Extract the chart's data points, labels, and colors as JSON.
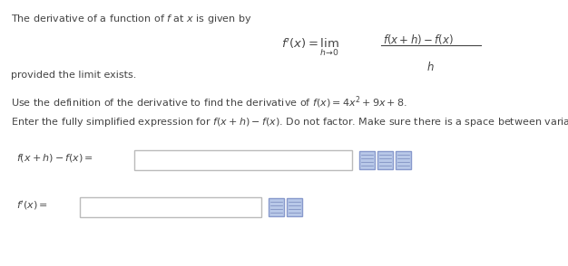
{
  "bg_color": "#ffffff",
  "text_color": "#444444",
  "line1": "The derivative of a function of $f$ at $x$ is given by",
  "formula_left": "$f'(x) = \\displaystyle\\lim_{h \\to 0}$",
  "formula_frac_num": "$f(x+h)-f(x)$",
  "formula_frac_den": "$h$",
  "line2": "provided the limit exists.",
  "line3": "Use the definition of the derivative to find the derivative of $f(x) = 4x^2 + 9x + 8$.",
  "line4": "Enter the fully simplified expression for $f(x+h) - f(x)$. Do not factor. Make sure there is a space between variables.",
  "label1": "$f(x+h) - f(x) =$",
  "label2": "$f'(x) =$",
  "box_edge_color": "#bbbbbb",
  "icon_face": "#b8c8e8",
  "icon_edge": "#8899cc"
}
